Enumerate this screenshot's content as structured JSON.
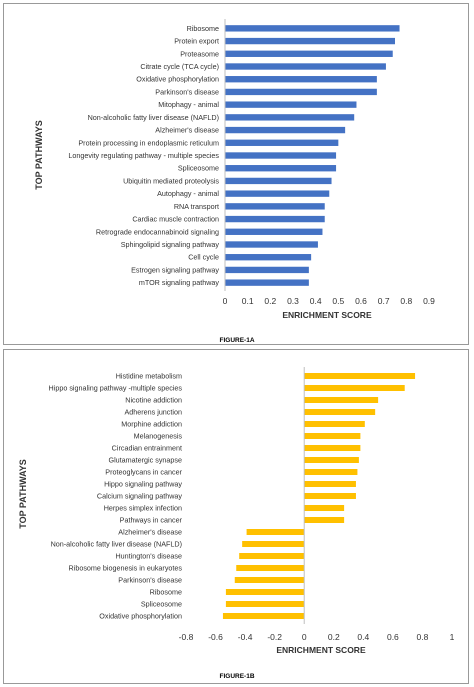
{
  "chart_data": [
    {
      "type": "bar",
      "orientation": "horizontal",
      "categories": [
        "Ribosome",
        "Protein export",
        "Proteasome",
        "Citrate cycle (TCA cycle)",
        "Oxidative phosphorylation",
        "Parkinson's disease",
        "Mitophagy - animal",
        "Non-alcoholic fatty liver disease (NAFLD)",
        "Alzheimer's disease",
        "Protein processing in endoplasmic reticulum",
        "Longevity regulating pathway - multiple species",
        "Spliceosome",
        "Ubiquitin mediated proteolysis",
        "Autophagy - animal",
        "RNA transport",
        "Cardiac muscle contraction",
        "Retrograde endocannabinoid signaling",
        "Sphingolipid signaling pathway",
        "Cell cycle",
        "Estrogen signaling pathway",
        "mTOR signaling pathway"
      ],
      "values": [
        0.77,
        0.75,
        0.74,
        0.71,
        0.67,
        0.67,
        0.58,
        0.57,
        0.53,
        0.5,
        0.49,
        0.49,
        0.47,
        0.46,
        0.44,
        0.44,
        0.43,
        0.41,
        0.38,
        0.37,
        0.37
      ],
      "xlabel": "ENRICHMENT SCORE",
      "ylabel": "TOP PATHWAYS",
      "xlim": [
        0,
        0.9
      ],
      "xticks": [
        "0",
        "0.1",
        "0.2",
        "0.3",
        "0.4",
        "0.5",
        "0.6",
        "0.7",
        "0.8",
        "0.9"
      ],
      "color": "#4472C4",
      "grid": false,
      "caption": "FIGURE-1A"
    },
    {
      "type": "bar",
      "orientation": "horizontal",
      "categories": [
        "Histidine metabolism",
        "Hippo signaling pathway -multiple species",
        "Nicotine addiction",
        "Adherens junction",
        "Morphine addiction",
        "Melanogenesis",
        "Circadian entrainment",
        "Glutamatergic synapse",
        "Proteoglycans in cancer",
        "Hippo signaling pathway",
        "Calcium signaling pathway",
        "Herpes simplex infection",
        "Pathways in cancer",
        "Alzheimer's disease",
        "Non-alcoholic fatty liver disease (NAFLD)",
        "Huntington's disease",
        "Ribosome biogenesis in eukaryotes",
        "Parkinson's disease",
        "Ribosome",
        "Spliceosome",
        "Oxidative phosphorylation"
      ],
      "values": [
        0.75,
        0.68,
        0.5,
        0.48,
        0.41,
        0.38,
        0.38,
        0.37,
        0.36,
        0.35,
        0.35,
        0.27,
        0.27,
        -0.39,
        -0.42,
        -0.44,
        -0.46,
        -0.47,
        -0.53,
        -0.53,
        -0.55
      ],
      "xlabel": "ENRICHMENT SCORE",
      "ylabel": "TOP PATHWAYS",
      "xlim": [
        -0.8,
        1
      ],
      "xticks": [
        "-0.8",
        "-0.6",
        "-0.4",
        "-0.2",
        "0",
        "0.2",
        "0.4",
        "0.6",
        "0.8",
        "1"
      ],
      "color": "#FFC000",
      "grid": false,
      "caption": "FIGURE-1B"
    }
  ]
}
